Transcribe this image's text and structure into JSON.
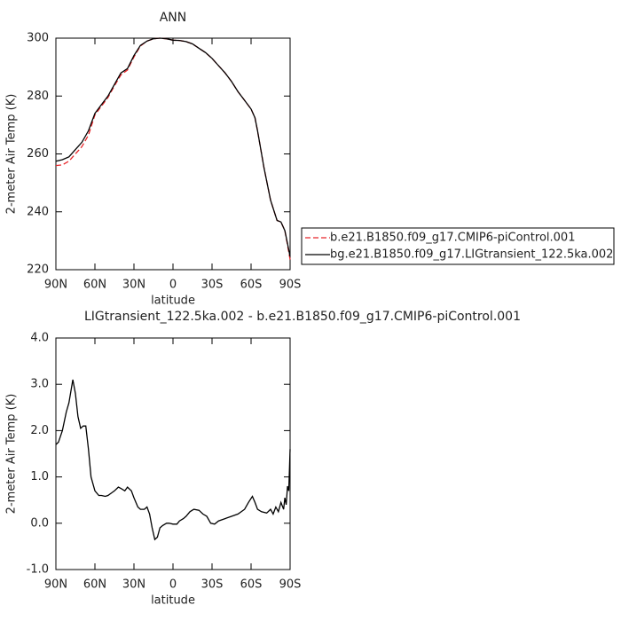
{
  "chart_data": [
    {
      "type": "line",
      "title": "ANN",
      "xlabel": "latitude",
      "ylabel": "2-meter Air Temp (K)",
      "x": [
        90,
        85,
        80,
        75,
        70,
        65,
        60,
        55,
        50,
        45,
        40,
        35,
        30,
        25,
        20,
        15,
        10,
        5,
        0,
        -5,
        -10,
        -15,
        -20,
        -25,
        -30,
        -35,
        -40,
        -45,
        -50,
        -55,
        -60,
        -63,
        -65,
        -70,
        -75,
        -80,
        -83,
        -86,
        -88,
        -90
      ],
      "series": [
        {
          "name": "b.e21.B1850.f09_g17.CMIP6-piControl.001",
          "color": "#e8262a",
          "line_style": "dashed",
          "values": [
            256,
            256.2,
            257.5,
            260,
            262.5,
            266.5,
            273.5,
            276.5,
            279.5,
            283.5,
            287.3,
            289,
            293.5,
            297.3,
            299,
            299.8,
            300,
            299.8,
            299.3,
            299.2,
            298.8,
            298,
            296.5,
            295,
            293,
            290.5,
            288,
            285,
            281.5,
            278.5,
            275.5,
            272.5,
            268,
            255,
            244,
            237,
            236.5,
            233.5,
            228.5,
            223.5
          ]
        },
        {
          "name": "bg.e21.B1850.f09_g17.LIGtransient_122.5ka.002",
          "color": "#000000",
          "line_style": "solid",
          "values": [
            257.5,
            258,
            259,
            261.5,
            264,
            268,
            274,
            277,
            280,
            284,
            288,
            289.5,
            294,
            297.5,
            299,
            299.8,
            300,
            299.8,
            299.3,
            299.2,
            298.8,
            298,
            296.5,
            295,
            293,
            290.5,
            288,
            285,
            281.5,
            278.5,
            275.5,
            272.5,
            268,
            255,
            244,
            237,
            236.5,
            233.5,
            229,
            224.5
          ]
        }
      ],
      "xlim": [
        90,
        -90
      ],
      "xticks": [
        {
          "value": 90,
          "label": "90N"
        },
        {
          "value": 60,
          "label": "60N"
        },
        {
          "value": 30,
          "label": "30N"
        },
        0,
        {
          "value": -30,
          "label": "30S"
        },
        {
          "value": -60,
          "label": "60S"
        },
        {
          "value": -90,
          "label": "90S"
        }
      ],
      "ylim": [
        220,
        300
      ],
      "yticks": [
        220,
        240,
        260,
        280,
        300
      ],
      "legend": "right"
    },
    {
      "type": "line",
      "title": "LIGtransient_122.5ka.002 - b.e21.B1850.f09_g17.CMIP6-piControl.001",
      "xlabel": "latitude",
      "ylabel": "2-meter Air Temp (K)",
      "x": [
        90,
        88,
        85,
        82,
        80,
        77,
        75,
        73,
        71,
        69,
        67,
        65,
        63,
        60,
        57,
        55,
        52,
        50,
        45,
        42,
        40,
        37,
        35,
        32,
        30,
        27,
        25,
        22,
        20,
        18,
        16,
        14,
        12,
        10,
        8,
        5,
        3,
        0,
        -3,
        -5,
        -8,
        -10,
        -13,
        -16,
        -20,
        -23,
        -26,
        -29,
        -32,
        -35,
        -40,
        -45,
        -50,
        -55,
        -58,
        -61,
        -63,
        -65,
        -68,
        -72,
        -75,
        -77,
        -79,
        -81,
        -83,
        -85,
        -86,
        -87,
        -88,
        -89,
        -90
      ],
      "series": [
        {
          "color": "#000000",
          "line_style": "solid",
          "values": [
            1.7,
            1.75,
            2.0,
            2.4,
            2.6,
            3.1,
            2.8,
            2.3,
            2.05,
            2.1,
            2.1,
            1.6,
            1.0,
            0.7,
            0.6,
            0.6,
            0.58,
            0.6,
            0.7,
            0.78,
            0.75,
            0.7,
            0.78,
            0.7,
            0.55,
            0.35,
            0.3,
            0.3,
            0.35,
            0.2,
            -0.1,
            -0.35,
            -0.3,
            -0.1,
            -0.05,
            0.0,
            0.0,
            -0.02,
            -0.02,
            0.05,
            0.1,
            0.15,
            0.25,
            0.3,
            0.28,
            0.2,
            0.15,
            0.0,
            -0.02,
            0.05,
            0.1,
            0.15,
            0.2,
            0.3,
            0.45,
            0.58,
            0.45,
            0.3,
            0.25,
            0.22,
            0.3,
            0.2,
            0.35,
            0.25,
            0.45,
            0.3,
            0.55,
            0.4,
            0.8,
            0.7,
            1.6
          ]
        }
      ],
      "xlim": [
        90,
        -90
      ],
      "xticks": [
        {
          "value": 90,
          "label": "90N"
        },
        {
          "value": 60,
          "label": "60N"
        },
        {
          "value": 30,
          "label": "30N"
        },
        0,
        {
          "value": -30,
          "label": "30S"
        },
        {
          "value": -60,
          "label": "60S"
        },
        {
          "value": -90,
          "label": "90S"
        }
      ],
      "ylim": [
        -1,
        4
      ],
      "yticks": [
        {
          "value": -1,
          "label": "-1.0"
        },
        {
          "value": 0,
          "label": "0.0"
        },
        {
          "value": 1,
          "label": "1.0"
        },
        {
          "value": 2,
          "label": "2.0"
        },
        {
          "value": 3,
          "label": "3.0"
        },
        {
          "value": 4,
          "label": "4.0"
        }
      ]
    }
  ]
}
